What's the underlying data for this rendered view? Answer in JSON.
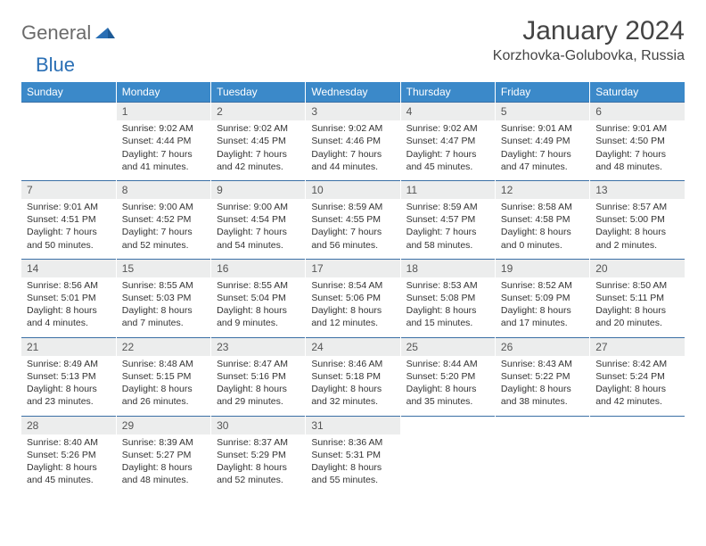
{
  "logo": {
    "general": "General",
    "blue": "Blue"
  },
  "title": "January 2024",
  "location": "Korzhovka-Golubovka, Russia",
  "day_headers": [
    "Sunday",
    "Monday",
    "Tuesday",
    "Wednesday",
    "Thursday",
    "Friday",
    "Saturday"
  ],
  "colors": {
    "header_bg": "#3b89c9",
    "header_text": "#ffffff",
    "daynum_bg": "#eceded",
    "rule": "#3b6fa5",
    "logo_gray": "#6b6b6b",
    "logo_blue": "#2a6fb5"
  },
  "weeks": [
    {
      "nums": [
        "",
        "1",
        "2",
        "3",
        "4",
        "5",
        "6"
      ],
      "cells": [
        {
          "blank": true
        },
        {
          "sunrise": "Sunrise: 9:02 AM",
          "sunset": "Sunset: 4:44 PM",
          "day1": "Daylight: 7 hours",
          "day2": "and 41 minutes."
        },
        {
          "sunrise": "Sunrise: 9:02 AM",
          "sunset": "Sunset: 4:45 PM",
          "day1": "Daylight: 7 hours",
          "day2": "and 42 minutes."
        },
        {
          "sunrise": "Sunrise: 9:02 AM",
          "sunset": "Sunset: 4:46 PM",
          "day1": "Daylight: 7 hours",
          "day2": "and 44 minutes."
        },
        {
          "sunrise": "Sunrise: 9:02 AM",
          "sunset": "Sunset: 4:47 PM",
          "day1": "Daylight: 7 hours",
          "day2": "and 45 minutes."
        },
        {
          "sunrise": "Sunrise: 9:01 AM",
          "sunset": "Sunset: 4:49 PM",
          "day1": "Daylight: 7 hours",
          "day2": "and 47 minutes."
        },
        {
          "sunrise": "Sunrise: 9:01 AM",
          "sunset": "Sunset: 4:50 PM",
          "day1": "Daylight: 7 hours",
          "day2": "and 48 minutes."
        }
      ]
    },
    {
      "nums": [
        "7",
        "8",
        "9",
        "10",
        "11",
        "12",
        "13"
      ],
      "cells": [
        {
          "sunrise": "Sunrise: 9:01 AM",
          "sunset": "Sunset: 4:51 PM",
          "day1": "Daylight: 7 hours",
          "day2": "and 50 minutes."
        },
        {
          "sunrise": "Sunrise: 9:00 AM",
          "sunset": "Sunset: 4:52 PM",
          "day1": "Daylight: 7 hours",
          "day2": "and 52 minutes."
        },
        {
          "sunrise": "Sunrise: 9:00 AM",
          "sunset": "Sunset: 4:54 PM",
          "day1": "Daylight: 7 hours",
          "day2": "and 54 minutes."
        },
        {
          "sunrise": "Sunrise: 8:59 AM",
          "sunset": "Sunset: 4:55 PM",
          "day1": "Daylight: 7 hours",
          "day2": "and 56 minutes."
        },
        {
          "sunrise": "Sunrise: 8:59 AM",
          "sunset": "Sunset: 4:57 PM",
          "day1": "Daylight: 7 hours",
          "day2": "and 58 minutes."
        },
        {
          "sunrise": "Sunrise: 8:58 AM",
          "sunset": "Sunset: 4:58 PM",
          "day1": "Daylight: 8 hours",
          "day2": "and 0 minutes."
        },
        {
          "sunrise": "Sunrise: 8:57 AM",
          "sunset": "Sunset: 5:00 PM",
          "day1": "Daylight: 8 hours",
          "day2": "and 2 minutes."
        }
      ]
    },
    {
      "nums": [
        "14",
        "15",
        "16",
        "17",
        "18",
        "19",
        "20"
      ],
      "cells": [
        {
          "sunrise": "Sunrise: 8:56 AM",
          "sunset": "Sunset: 5:01 PM",
          "day1": "Daylight: 8 hours",
          "day2": "and 4 minutes."
        },
        {
          "sunrise": "Sunrise: 8:55 AM",
          "sunset": "Sunset: 5:03 PM",
          "day1": "Daylight: 8 hours",
          "day2": "and 7 minutes."
        },
        {
          "sunrise": "Sunrise: 8:55 AM",
          "sunset": "Sunset: 5:04 PM",
          "day1": "Daylight: 8 hours",
          "day2": "and 9 minutes."
        },
        {
          "sunrise": "Sunrise: 8:54 AM",
          "sunset": "Sunset: 5:06 PM",
          "day1": "Daylight: 8 hours",
          "day2": "and 12 minutes."
        },
        {
          "sunrise": "Sunrise: 8:53 AM",
          "sunset": "Sunset: 5:08 PM",
          "day1": "Daylight: 8 hours",
          "day2": "and 15 minutes."
        },
        {
          "sunrise": "Sunrise: 8:52 AM",
          "sunset": "Sunset: 5:09 PM",
          "day1": "Daylight: 8 hours",
          "day2": "and 17 minutes."
        },
        {
          "sunrise": "Sunrise: 8:50 AM",
          "sunset": "Sunset: 5:11 PM",
          "day1": "Daylight: 8 hours",
          "day2": "and 20 minutes."
        }
      ]
    },
    {
      "nums": [
        "21",
        "22",
        "23",
        "24",
        "25",
        "26",
        "27"
      ],
      "cells": [
        {
          "sunrise": "Sunrise: 8:49 AM",
          "sunset": "Sunset: 5:13 PM",
          "day1": "Daylight: 8 hours",
          "day2": "and 23 minutes."
        },
        {
          "sunrise": "Sunrise: 8:48 AM",
          "sunset": "Sunset: 5:15 PM",
          "day1": "Daylight: 8 hours",
          "day2": "and 26 minutes."
        },
        {
          "sunrise": "Sunrise: 8:47 AM",
          "sunset": "Sunset: 5:16 PM",
          "day1": "Daylight: 8 hours",
          "day2": "and 29 minutes."
        },
        {
          "sunrise": "Sunrise: 8:46 AM",
          "sunset": "Sunset: 5:18 PM",
          "day1": "Daylight: 8 hours",
          "day2": "and 32 minutes."
        },
        {
          "sunrise": "Sunrise: 8:44 AM",
          "sunset": "Sunset: 5:20 PM",
          "day1": "Daylight: 8 hours",
          "day2": "and 35 minutes."
        },
        {
          "sunrise": "Sunrise: 8:43 AM",
          "sunset": "Sunset: 5:22 PM",
          "day1": "Daylight: 8 hours",
          "day2": "and 38 minutes."
        },
        {
          "sunrise": "Sunrise: 8:42 AM",
          "sunset": "Sunset: 5:24 PM",
          "day1": "Daylight: 8 hours",
          "day2": "and 42 minutes."
        }
      ]
    },
    {
      "nums": [
        "28",
        "29",
        "30",
        "31",
        "",
        "",
        ""
      ],
      "cells": [
        {
          "sunrise": "Sunrise: 8:40 AM",
          "sunset": "Sunset: 5:26 PM",
          "day1": "Daylight: 8 hours",
          "day2": "and 45 minutes."
        },
        {
          "sunrise": "Sunrise: 8:39 AM",
          "sunset": "Sunset: 5:27 PM",
          "day1": "Daylight: 8 hours",
          "day2": "and 48 minutes."
        },
        {
          "sunrise": "Sunrise: 8:37 AM",
          "sunset": "Sunset: 5:29 PM",
          "day1": "Daylight: 8 hours",
          "day2": "and 52 minutes."
        },
        {
          "sunrise": "Sunrise: 8:36 AM",
          "sunset": "Sunset: 5:31 PM",
          "day1": "Daylight: 8 hours",
          "day2": "and 55 minutes."
        },
        {
          "blank": true
        },
        {
          "blank": true
        },
        {
          "blank": true
        }
      ]
    }
  ]
}
